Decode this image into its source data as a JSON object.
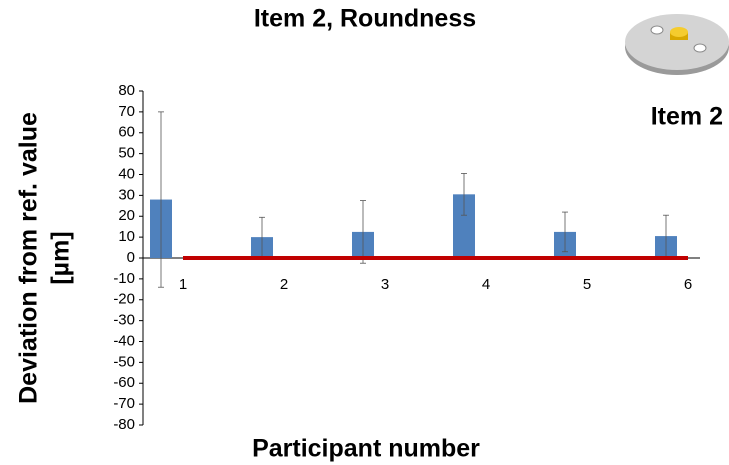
{
  "chart_data": {
    "type": "bar",
    "title": "Item 2, Roundness",
    "annotation": "Item 2",
    "x_label": "Participant number",
    "y_label": [
      "Deviation from ref. value",
      "[µm]"
    ],
    "categories": [
      "1",
      "2",
      "3",
      "4",
      "5",
      "6"
    ],
    "series": [
      {
        "color": "#4f81bd",
        "values": [
          28,
          10,
          12.5,
          30.5,
          12.5,
          10.5
        ],
        "errors": [
          42,
          9.5,
          15,
          10,
          9.5,
          10
        ]
      },
      {
        "color": "#c00000",
        "values": [
          0,
          0,
          0,
          0,
          0,
          0
        ]
      }
    ],
    "ylim": [
      -80,
      80
    ],
    "yticks": [
      -80,
      -70,
      -60,
      -50,
      -40,
      -30,
      -20,
      -10,
      0,
      10,
      20,
      30,
      40,
      50,
      60,
      70,
      80
    ]
  }
}
